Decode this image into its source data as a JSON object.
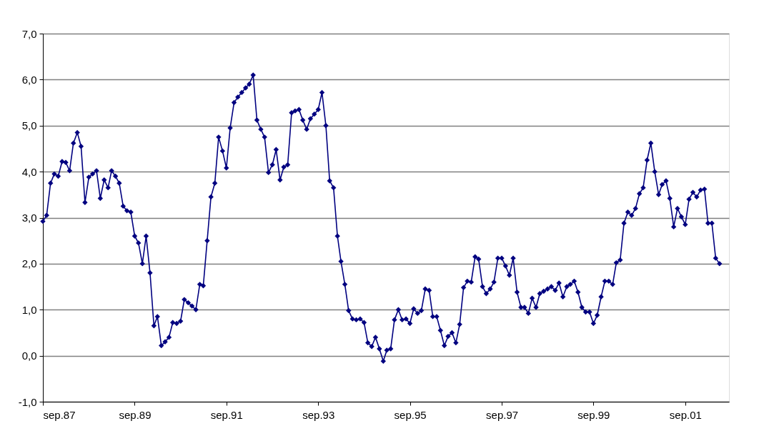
{
  "chart_data": {
    "type": "line",
    "marker": "diamond",
    "grid": "y",
    "x": [
      "1987-09",
      "1987-10",
      "1987-11",
      "1987-12",
      "1988-01",
      "1988-02",
      "1988-03",
      "1988-04",
      "1988-05",
      "1988-06",
      "1988-07",
      "1988-08",
      "1988-09",
      "1988-10",
      "1988-11",
      "1988-12",
      "1989-01",
      "1989-02",
      "1989-03",
      "1989-04",
      "1989-05",
      "1989-06",
      "1989-07",
      "1989-08",
      "1989-09",
      "1989-10",
      "1989-11",
      "1989-12",
      "1990-01",
      "1990-02",
      "1990-03",
      "1990-04",
      "1990-05",
      "1990-06",
      "1990-07",
      "1990-08",
      "1990-09",
      "1990-10",
      "1990-11",
      "1990-12",
      "1991-01",
      "1991-02",
      "1991-03",
      "1991-04",
      "1991-05",
      "1991-06",
      "1991-07",
      "1991-08",
      "1991-09",
      "1991-10",
      "1991-11",
      "1991-12",
      "1992-01",
      "1992-02",
      "1992-03",
      "1992-04",
      "1992-05",
      "1992-06",
      "1992-07",
      "1992-08",
      "1992-09",
      "1992-10",
      "1992-11",
      "1992-12",
      "1993-01",
      "1993-02",
      "1993-03",
      "1993-04",
      "1993-05",
      "1993-06",
      "1993-07",
      "1993-08",
      "1993-09",
      "1993-10",
      "1993-11",
      "1993-12",
      "1994-01",
      "1994-02",
      "1994-03",
      "1994-04",
      "1994-05",
      "1994-06",
      "1994-07",
      "1994-08",
      "1994-09",
      "1994-10",
      "1994-11",
      "1994-12",
      "1995-01",
      "1995-02",
      "1995-03",
      "1995-04",
      "1995-05",
      "1995-06",
      "1995-07",
      "1995-08",
      "1995-09",
      "1995-10",
      "1995-11",
      "1995-12",
      "1996-01",
      "1996-02",
      "1996-03",
      "1996-04",
      "1996-05",
      "1996-06",
      "1996-07",
      "1996-08",
      "1996-09",
      "1996-10",
      "1996-11",
      "1996-12",
      "1997-01",
      "1997-02",
      "1997-03",
      "1997-04",
      "1997-05",
      "1997-06",
      "1997-07",
      "1997-08",
      "1997-09",
      "1997-10",
      "1997-11",
      "1997-12",
      "1998-01",
      "1998-02",
      "1998-03",
      "1998-04",
      "1998-05",
      "1998-06",
      "1998-07",
      "1998-08",
      "1998-09",
      "1998-10",
      "1998-11",
      "1998-12",
      "1999-01",
      "1999-02",
      "1999-03",
      "1999-04",
      "1999-05",
      "1999-06",
      "1999-07",
      "1999-08",
      "1999-09",
      "1999-10",
      "1999-11",
      "1999-12",
      "2000-01",
      "2000-02",
      "2000-03",
      "2000-04",
      "2000-05",
      "2000-06",
      "2000-07",
      "2000-08",
      "2000-09",
      "2000-10",
      "2000-11",
      "2000-12",
      "2001-01",
      "2001-02",
      "2001-03",
      "2001-04",
      "2001-05",
      "2001-06",
      "2001-07",
      "2001-08",
      "2001-09",
      "2001-10",
      "2001-11",
      "2001-12",
      "2002-01",
      "2002-02",
      "2002-03",
      "2002-04",
      "2002-05",
      "2002-06"
    ],
    "series": [
      {
        "color": "#000080",
        "values": [
          2.92,
          3.05,
          3.75,
          3.95,
          3.9,
          4.22,
          4.2,
          4.02,
          4.62,
          4.85,
          4.55,
          3.33,
          3.88,
          3.95,
          4.02,
          3.42,
          3.82,
          3.65,
          4.02,
          3.9,
          3.75,
          3.25,
          3.15,
          3.12,
          2.6,
          2.45,
          2.0,
          2.6,
          1.8,
          0.65,
          0.85,
          0.22,
          0.3,
          0.4,
          0.72,
          0.7,
          0.75,
          1.22,
          1.15,
          1.08,
          1.0,
          1.55,
          1.52,
          2.5,
          3.45,
          3.75,
          4.75,
          4.45,
          4.08,
          4.95,
          5.5,
          5.62,
          5.72,
          5.82,
          5.9,
          6.1,
          5.12,
          4.92,
          4.75,
          3.98,
          4.15,
          4.48,
          3.82,
          4.1,
          4.15,
          5.28,
          5.32,
          5.35,
          5.12,
          4.92,
          5.15,
          5.25,
          5.35,
          5.72,
          5.0,
          3.8,
          3.65,
          2.6,
          2.05,
          1.55,
          0.98,
          0.8,
          0.78,
          0.8,
          0.72,
          0.28,
          0.2,
          0.4,
          0.15,
          -0.12,
          0.12,
          0.15,
          0.78,
          1.0,
          0.78,
          0.8,
          0.7,
          1.02,
          0.92,
          0.98,
          1.45,
          1.42,
          0.85,
          0.85,
          0.55,
          0.22,
          0.42,
          0.5,
          0.28,
          0.68,
          1.48,
          1.62,
          1.6,
          2.15,
          2.1,
          1.5,
          1.35,
          1.45,
          1.6,
          2.12,
          2.12,
          1.95,
          1.75,
          2.12,
          1.38,
          1.05,
          1.05,
          0.92,
          1.25,
          1.05,
          1.35,
          1.4,
          1.45,
          1.5,
          1.42,
          1.58,
          1.28,
          1.5,
          1.55,
          1.62,
          1.38,
          1.05,
          0.95,
          0.95,
          0.7,
          0.88,
          1.28,
          1.62,
          1.62,
          1.55,
          2.02,
          2.08,
          2.88,
          3.12,
          3.05,
          3.2,
          3.52,
          3.65,
          4.25,
          4.62,
          4.0,
          3.5,
          3.72,
          3.8,
          3.42,
          2.8,
          3.2,
          3.02,
          2.85,
          3.4,
          3.55,
          3.45,
          3.6,
          3.62,
          2.88,
          2.88,
          2.12,
          2.0
        ]
      }
    ],
    "xlim": [
      "1987-09",
      "2002-08-15"
    ],
    "xticks": [
      {
        "value": "1987-09",
        "label": "sep.87"
      },
      {
        "value": "1989-09",
        "label": "sep.89"
      },
      {
        "value": "1991-09",
        "label": "sep.91"
      },
      {
        "value": "1993-09",
        "label": "sep.93"
      },
      {
        "value": "1995-09",
        "label": "sep.95"
      },
      {
        "value": "1997-09",
        "label": "sep.97"
      },
      {
        "value": "1999-09",
        "label": "sep.99"
      },
      {
        "value": "2001-09",
        "label": "sep.01"
      }
    ],
    "ylim": [
      -1.0,
      7.0
    ],
    "yticks": [
      {
        "value": -1.0,
        "label": "-1,0"
      },
      {
        "value": 0.0,
        "label": "0,0"
      },
      {
        "value": 1.0,
        "label": "1,0"
      },
      {
        "value": 2.0,
        "label": "2,0"
      },
      {
        "value": 3.0,
        "label": "3,0"
      },
      {
        "value": 4.0,
        "label": "4,0"
      },
      {
        "value": 5.0,
        "label": "5,0"
      },
      {
        "value": 6.0,
        "label": "6,0"
      },
      {
        "value": 7.0,
        "label": "7,0"
      }
    ]
  }
}
